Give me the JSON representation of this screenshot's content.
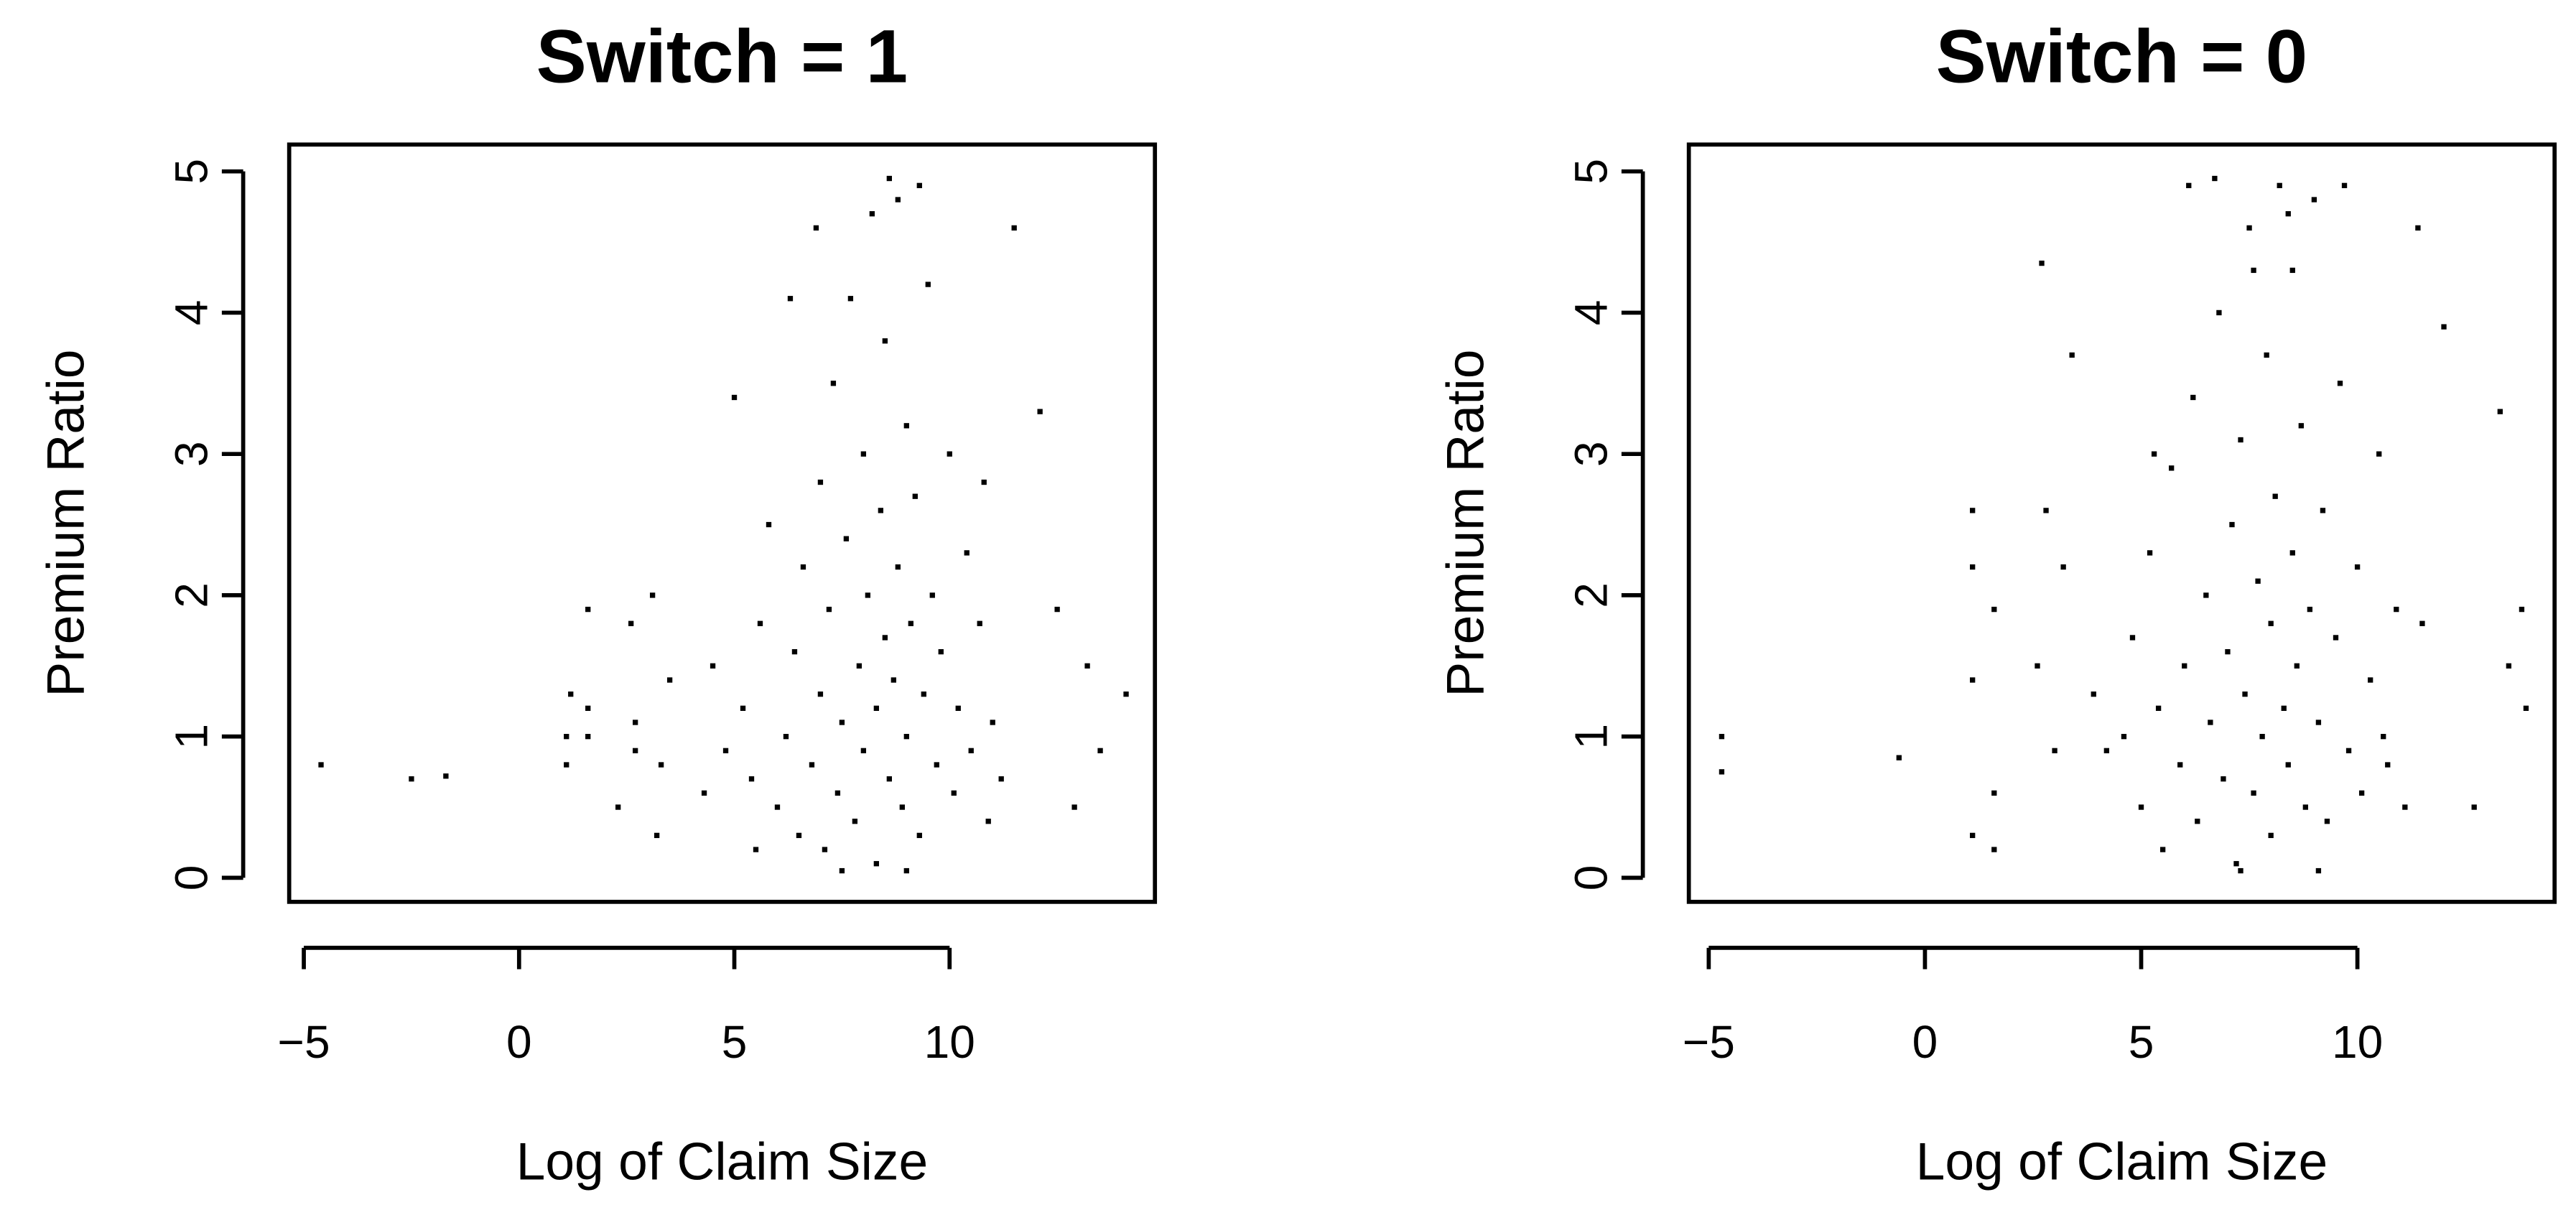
{
  "chart_data": [
    {
      "type": "scatter",
      "title": "Switch = 1",
      "xlabel": "Log of Claim Size",
      "ylabel": "Premium Ratio",
      "color": "#000000",
      "xlim": [
        -5.34,
        14.77
      ],
      "ylim": [
        -0.17,
        5.19
      ],
      "xticks": [
        {
          "value": -5,
          "label": "−5"
        },
        0,
        5,
        10
      ],
      "yticks": [
        0,
        1,
        2,
        3,
        4,
        5
      ],
      "x": [
        -4.6,
        -2.5,
        -1.7,
        1.1,
        1.1,
        1.2,
        1.6,
        1.6,
        1.6,
        2.3,
        2.6,
        2.7,
        2.7,
        3.1,
        3.2,
        3.3,
        3.5,
        14.1,
        13.5,
        13.2,
        12.9,
        12.5,
        12.1,
        11.5,
        6.0,
        6.2,
        6.4,
        6.5,
        6.6,
        6.8,
        7.0,
        7.0,
        7.1,
        7.2,
        7.3,
        7.4,
        7.5,
        7.6,
        7.7,
        7.8,
        7.9,
        8.0,
        8.0,
        8.1,
        8.2,
        8.3,
        8.3,
        8.4,
        8.5,
        8.5,
        8.6,
        8.7,
        8.8,
        8.8,
        8.9,
        9.0,
        9.0,
        9.1,
        9.2,
        9.3,
        9.4,
        9.5,
        9.6,
        9.7,
        9.8,
        10.0,
        10.1,
        10.2,
        10.4,
        10.5,
        10.7,
        10.9,
        11.0,
        5.2,
        5.4,
        5.6,
        5.8,
        4.8,
        4.5,
        5.0,
        6.3,
        6.9,
        8.6,
        9.3,
        7.5,
        9.0,
        10.8,
        11.2,
        4.3,
        5.5
      ],
      "y": [
        0.8,
        0.7,
        0.72,
        0.8,
        1.0,
        1.3,
        1.0,
        1.2,
        1.9,
        0.5,
        1.8,
        0.9,
        1.1,
        2.0,
        0.3,
        0.8,
        1.4,
        1.3,
        0.9,
        1.5,
        0.5,
        1.9,
        3.3,
        4.6,
        0.5,
        1.0,
        1.6,
        0.3,
        2.2,
        0.8,
        1.3,
        2.8,
        0.2,
        1.9,
        3.5,
        0.6,
        1.1,
        2.4,
        4.1,
        0.4,
        1.5,
        3.0,
        0.9,
        2.0,
        4.7,
        1.2,
        0.1,
        2.6,
        1.7,
        3.8,
        0.7,
        1.4,
        2.2,
        4.8,
        0.5,
        1.0,
        3.2,
        1.8,
        2.7,
        0.3,
        1.3,
        4.2,
        2.0,
        0.8,
        1.6,
        3.0,
        0.6,
        1.2,
        2.3,
        0.9,
        1.8,
        0.4,
        1.1,
        1.2,
        0.7,
        1.8,
        2.5,
        0.9,
        1.5,
        3.4,
        4.1,
        4.6,
        4.95,
        4.9,
        0.05,
        0.05,
        2.8,
        0.7,
        0.6,
        0.2
      ]
    },
    {
      "type": "scatter",
      "title": "Switch = 0",
      "xlabel": "Log of Claim Size",
      "ylabel": "Premium Ratio",
      "color": "#000000",
      "xlim": [
        -5.46,
        14.56
      ],
      "ylim": [
        -0.17,
        5.19
      ],
      "xticks": [
        {
          "value": -5,
          "label": "−5"
        },
        0,
        5,
        10
      ],
      "yticks": [
        0,
        1,
        2,
        3,
        4,
        5
      ],
      "x": [
        -4.7,
        -4.7,
        -0.6,
        1.1,
        1.1,
        1.1,
        1.1,
        1.6,
        1.6,
        1.6,
        2.7,
        2.6,
        2.8,
        3.0,
        3.2,
        3.4,
        13.8,
        13.9,
        13.3,
        13.5,
        12.7,
        12.0,
        11.4,
        4.6,
        4.8,
        5.0,
        5.2,
        5.4,
        5.5,
        5.7,
        5.9,
        6.0,
        6.2,
        6.3,
        6.5,
        6.6,
        6.8,
        6.9,
        7.0,
        7.1,
        7.2,
        7.3,
        7.4,
        7.5,
        7.6,
        7.7,
        7.8,
        7.9,
        8.0,
        8.0,
        8.1,
        8.2,
        8.3,
        8.4,
        8.5,
        8.5,
        8.6,
        8.7,
        8.8,
        8.9,
        9.0,
        9.1,
        9.2,
        9.3,
        9.5,
        9.6,
        9.8,
        10.0,
        10.1,
        10.3,
        10.5,
        10.7,
        10.9,
        11.1,
        4.2,
        3.9,
        6.1,
        6.7,
        7.3,
        8.4,
        9.1,
        9.7,
        10.6,
        11.5,
        5.3,
        7.6
      ],
      "y": [
        1.0,
        0.75,
        0.85,
        0.3,
        2.6,
        1.4,
        2.2,
        0.6,
        1.9,
        0.2,
        4.35,
        1.5,
        2.6,
        0.9,
        2.2,
        3.7,
        1.9,
        1.2,
        3.3,
        1.5,
        0.5,
        3.9,
        4.6,
        1.0,
        1.7,
        0.5,
        2.3,
        1.2,
        0.2,
        2.9,
        0.8,
        1.5,
        3.4,
        0.4,
        2.0,
        1.1,
        4.0,
        0.7,
        1.6,
        2.5,
        0.1,
        3.1,
        1.3,
        4.6,
        0.6,
        2.1,
        1.0,
        3.7,
        0.3,
        1.8,
        2.7,
        4.9,
        1.2,
        0.8,
        2.3,
        4.3,
        1.5,
        3.2,
        0.5,
        1.9,
        4.8,
        1.1,
        2.6,
        0.4,
        1.7,
        3.5,
        0.9,
        2.2,
        0.6,
        1.4,
        3.0,
        0.8,
        1.9,
        0.5,
        0.9,
        1.3,
        4.9,
        4.95,
        0.05,
        4.7,
        0.05,
        4.9,
        1.0,
        1.8,
        3.0,
        4.3
      ]
    }
  ]
}
